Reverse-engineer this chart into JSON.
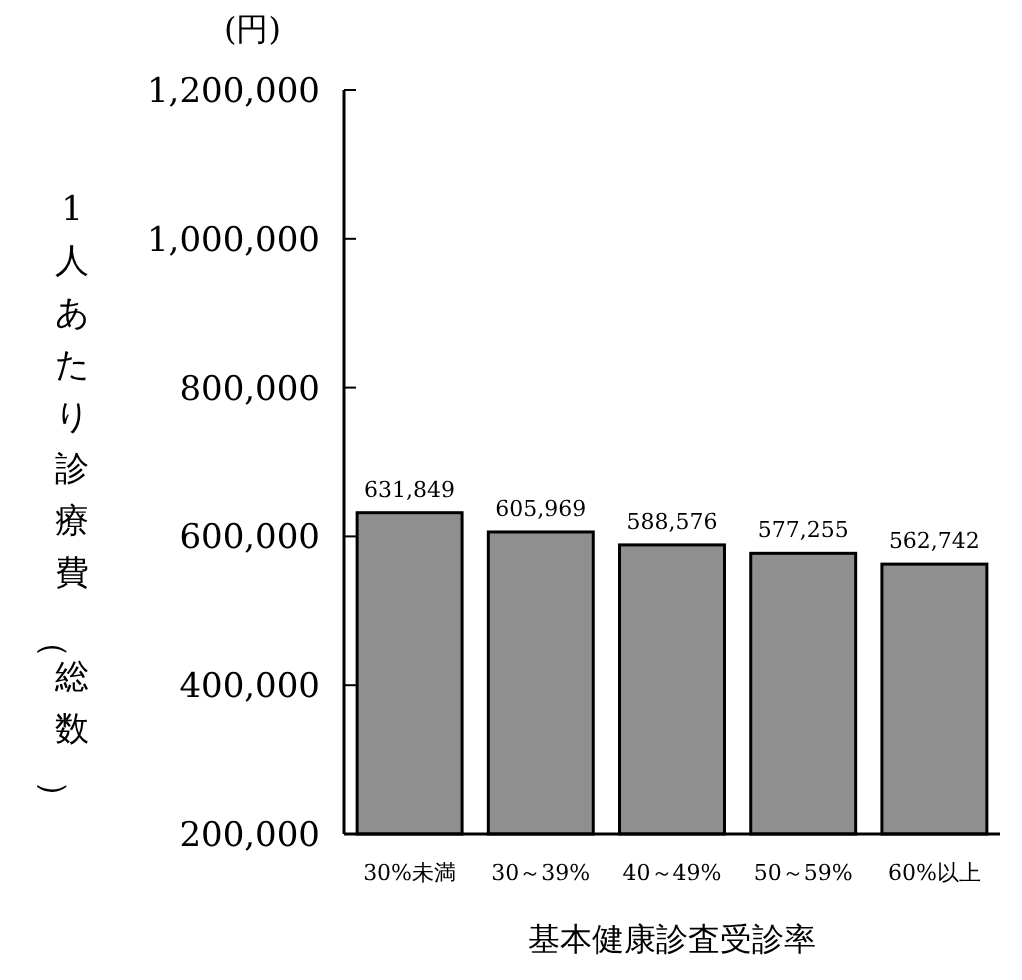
{
  "chart_data": {
    "type": "bar",
    "xlabel": "基本健康診査受診率",
    "ylabel": "1人あたり診療費（総数）",
    "annotations": [
      "(円)"
    ],
    "categories": [
      "30%未満",
      "30～39%",
      "40～49%",
      "50～59%",
      "60%以上"
    ],
    "values": [
      631849,
      605969,
      588576,
      577255,
      562742
    ],
    "color": "#8f8f8f",
    "ylim": [
      200000,
      1200000
    ],
    "yticks": [
      {
        "value": 200000,
        "label": "200,000"
      },
      {
        "value": 400000,
        "label": "400,000"
      },
      {
        "value": 600000,
        "label": "600,000"
      },
      {
        "value": 800000,
        "label": "800,000"
      },
      {
        "value": 1000000,
        "label": "1,000,000"
      },
      {
        "value": 1200000,
        "label": "1,200,000"
      }
    ],
    "value_labels": [
      "631,849",
      "605,969",
      "588,576",
      "577,255",
      "562,742"
    ],
    "grid": false
  }
}
